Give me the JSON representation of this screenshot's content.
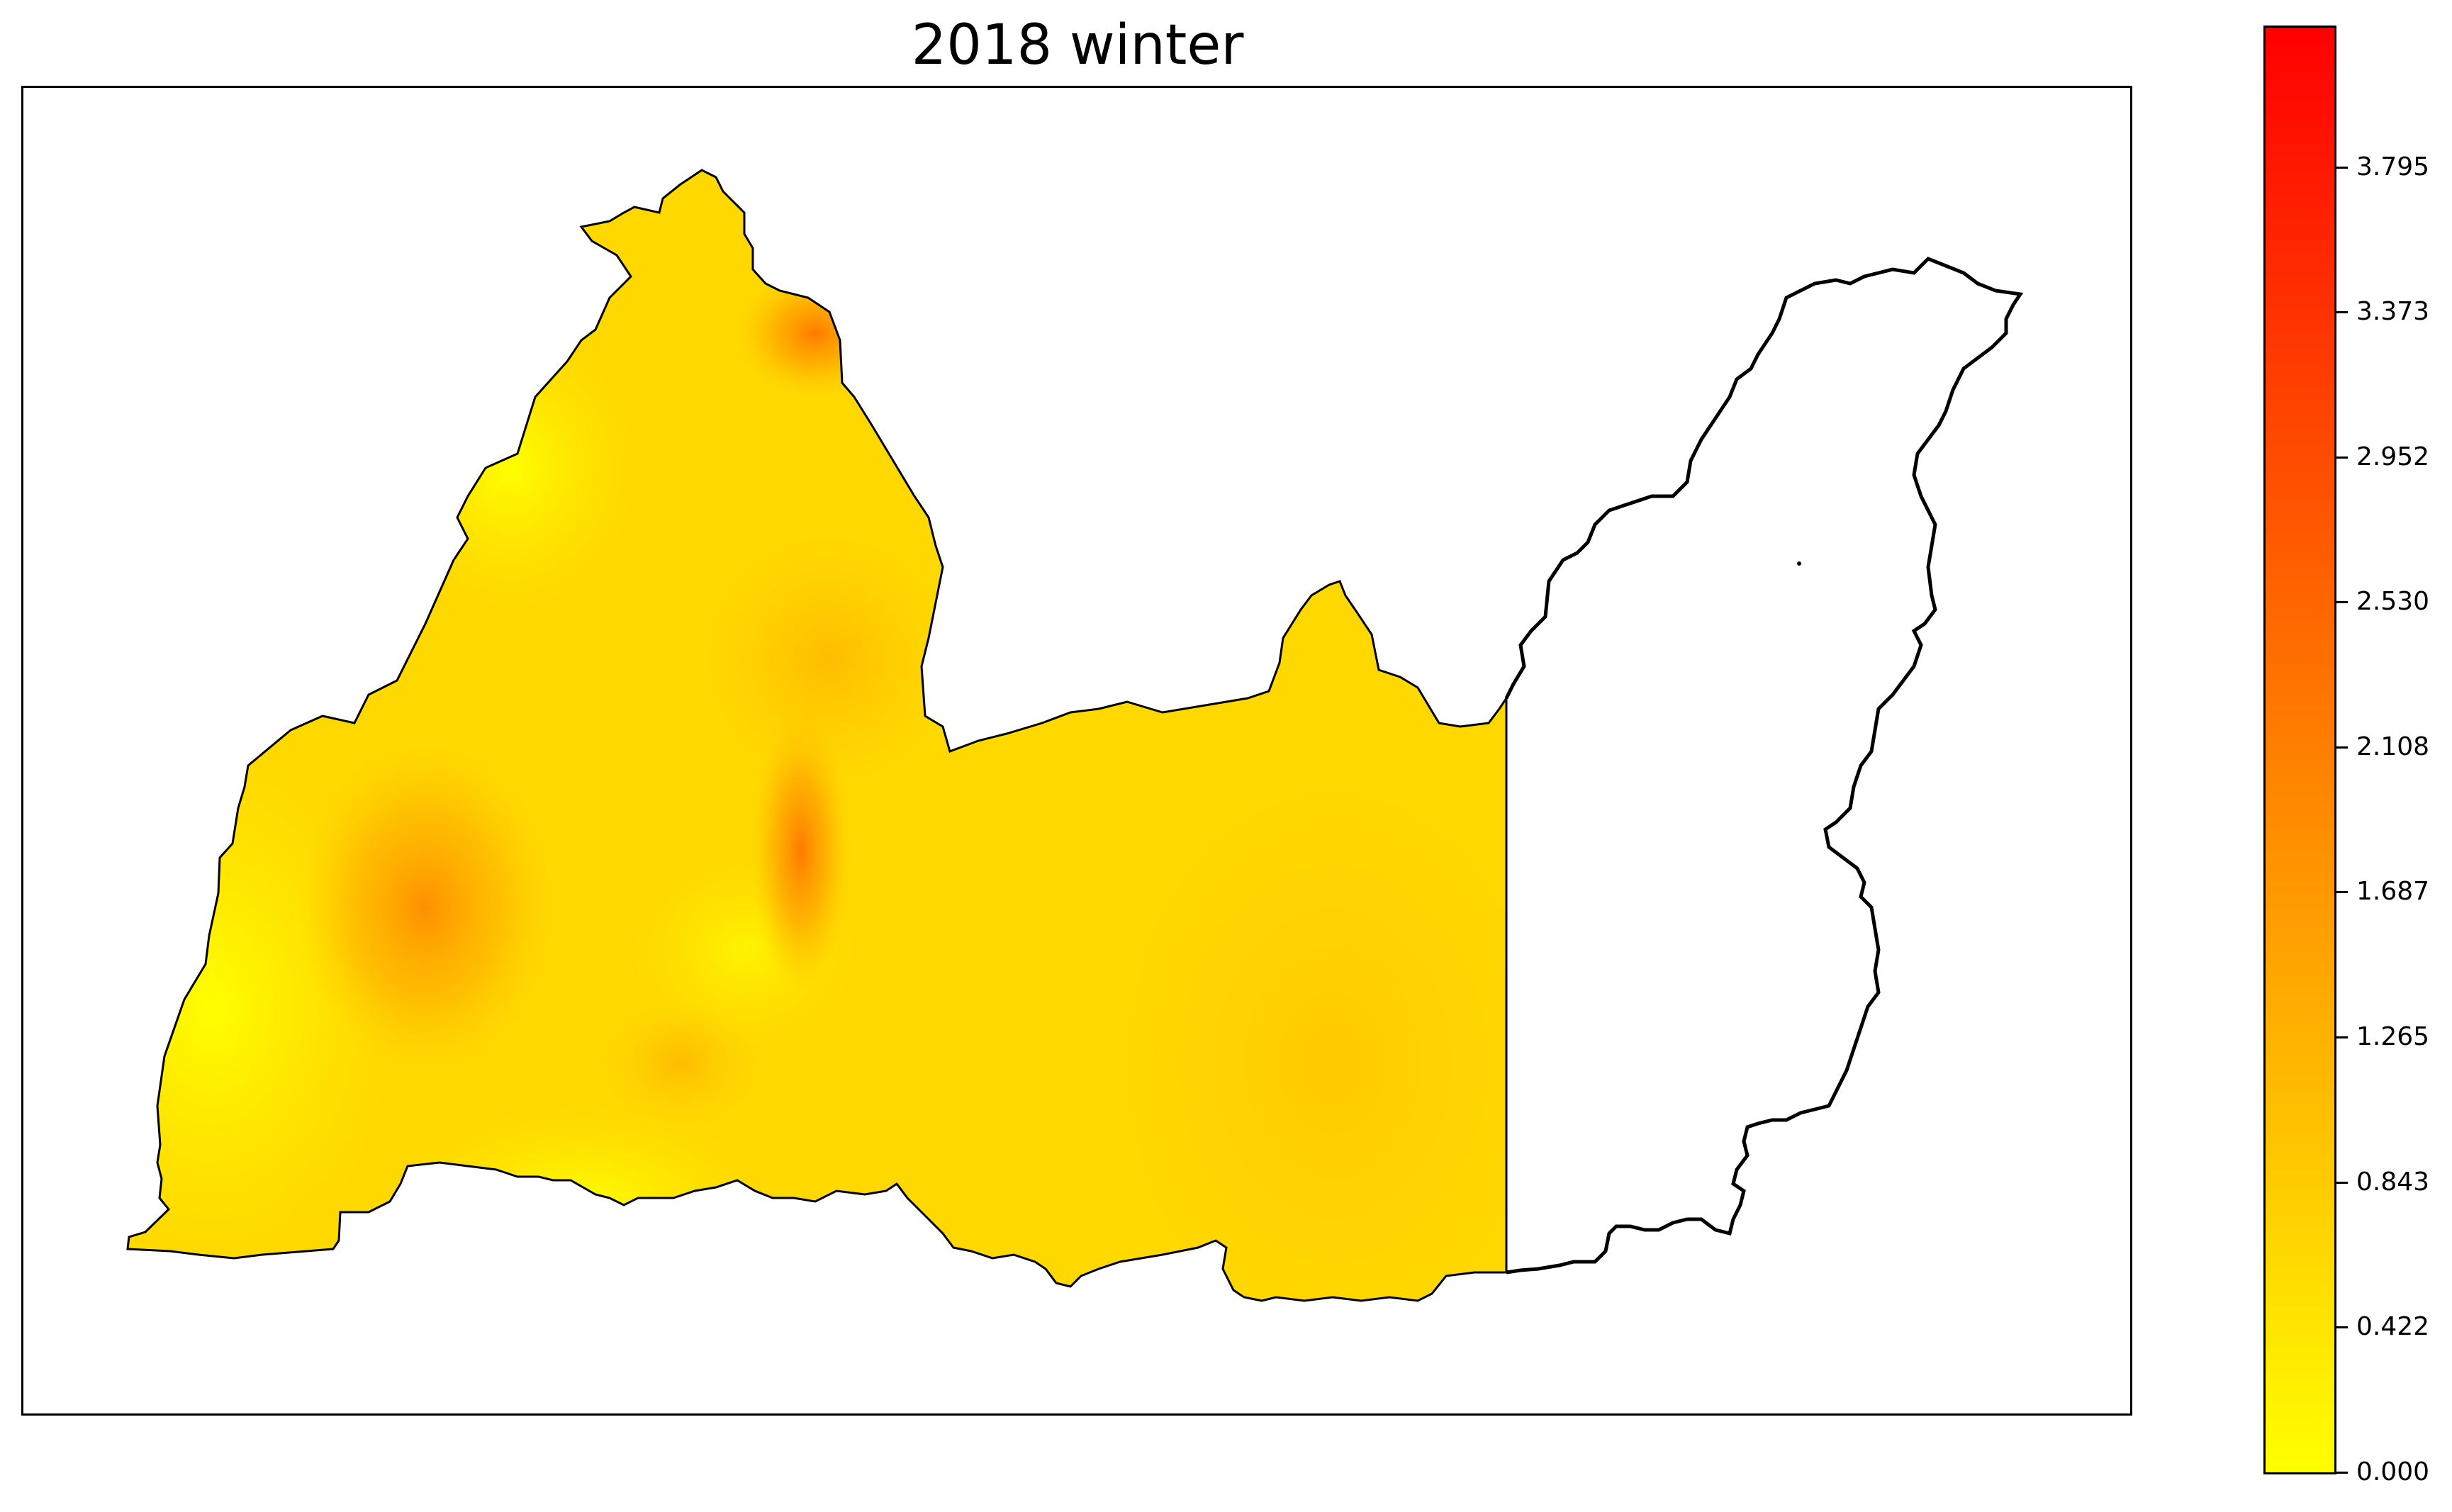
{
  "title": "2018 winter",
  "map": {
    "region_colors": {
      "base": "#ffd700",
      "light": "#fff200",
      "warm": "#ffb300",
      "hot": "#ff8c00",
      "outline": "#000000",
      "empty": "#ffffff"
    }
  },
  "colorbar": {
    "min": 0.0,
    "max": 4.2,
    "colors": [
      "#ffff00",
      "#ffd400",
      "#ffaa00",
      "#ff7f00",
      "#ff5500",
      "#ff2a00",
      "#ff0000"
    ],
    "ticks": [
      "0.000",
      "0.422",
      "0.843",
      "1.265",
      "1.687",
      "2.108",
      "2.530",
      "2.952",
      "3.373",
      "3.795"
    ]
  }
}
